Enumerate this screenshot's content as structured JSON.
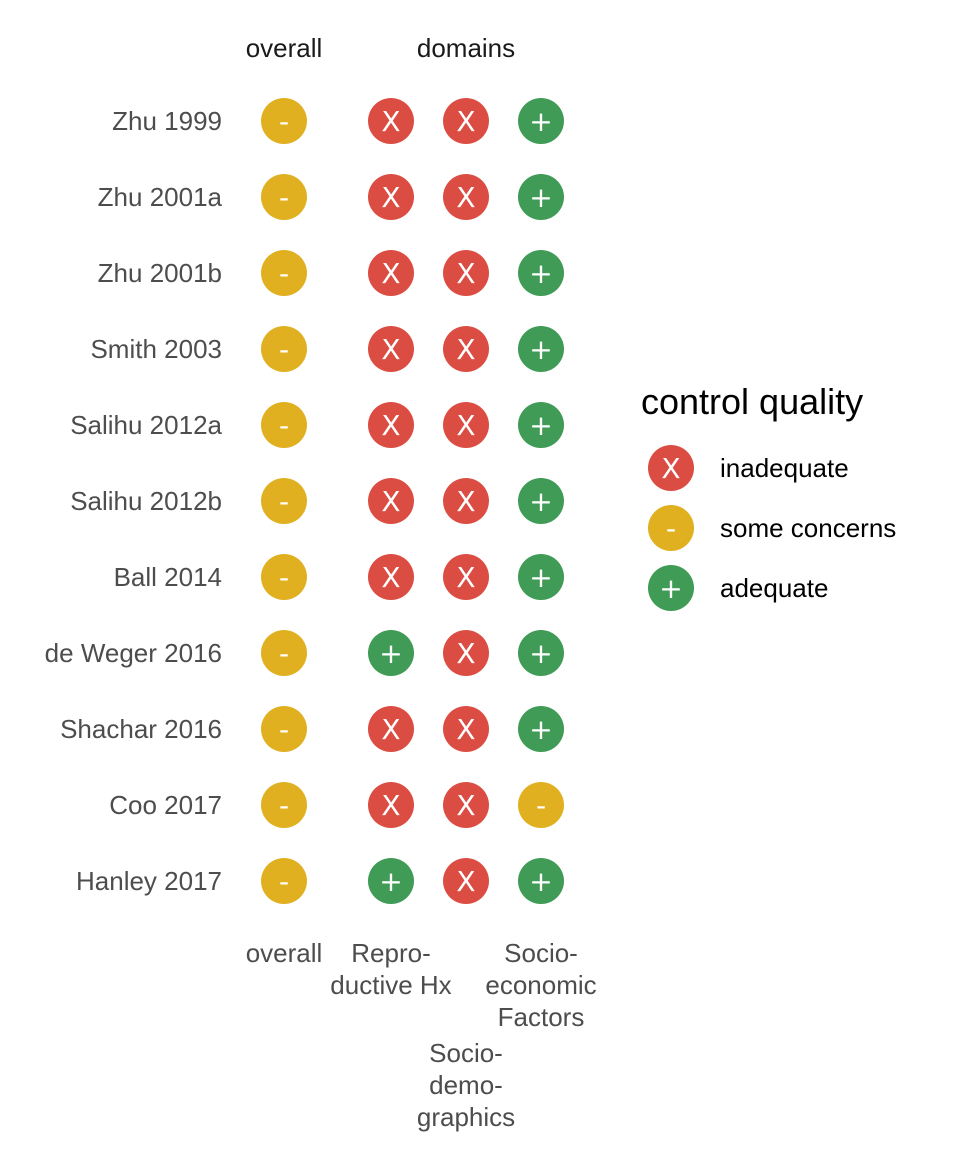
{
  "chart_data": {
    "type": "table",
    "headers": {
      "overall": "overall",
      "domains": "domains"
    },
    "rows": [
      "Zhu 1999",
      "Zhu 2001a",
      "Zhu 2001b",
      "Smith 2003",
      "Salihu 2012a",
      "Salihu 2012b",
      "Ball 2014",
      "de Weger 2016",
      "Shachar 2016",
      "Coo 2017",
      "Hanley 2017"
    ],
    "columns": [
      {
        "label_lines": [
          "overall"
        ]
      },
      {
        "label_lines": [
          "Repro-",
          "ductive Hx"
        ]
      },
      {
        "label_lines": [
          "Socio-",
          "demo-",
          "graphics"
        ]
      },
      {
        "label_lines": [
          "Socio-",
          "economic",
          "Factors"
        ]
      }
    ],
    "ratings": [
      [
        "some concerns",
        "inadequate",
        "inadequate",
        "adequate"
      ],
      [
        "some concerns",
        "inadequate",
        "inadequate",
        "adequate"
      ],
      [
        "some concerns",
        "inadequate",
        "inadequate",
        "adequate"
      ],
      [
        "some concerns",
        "inadequate",
        "inadequate",
        "adequate"
      ],
      [
        "some concerns",
        "inadequate",
        "inadequate",
        "adequate"
      ],
      [
        "some concerns",
        "inadequate",
        "inadequate",
        "adequate"
      ],
      [
        "some concerns",
        "inadequate",
        "inadequate",
        "adequate"
      ],
      [
        "some concerns",
        "adequate",
        "inadequate",
        "adequate"
      ],
      [
        "some concerns",
        "inadequate",
        "inadequate",
        "adequate"
      ],
      [
        "some concerns",
        "inadequate",
        "inadequate",
        "some concerns"
      ],
      [
        "some concerns",
        "adequate",
        "inadequate",
        "adequate"
      ]
    ],
    "legend": {
      "title": "control quality",
      "placement": "right",
      "items": [
        {
          "name": "inadequate",
          "symbol": "X",
          "color": "#DB4D43"
        },
        {
          "name": "some concerns",
          "symbol": "-",
          "color": "#E0B020"
        },
        {
          "name": "adequate",
          "symbol": "+",
          "color": "#3F9B55"
        }
      ]
    }
  }
}
